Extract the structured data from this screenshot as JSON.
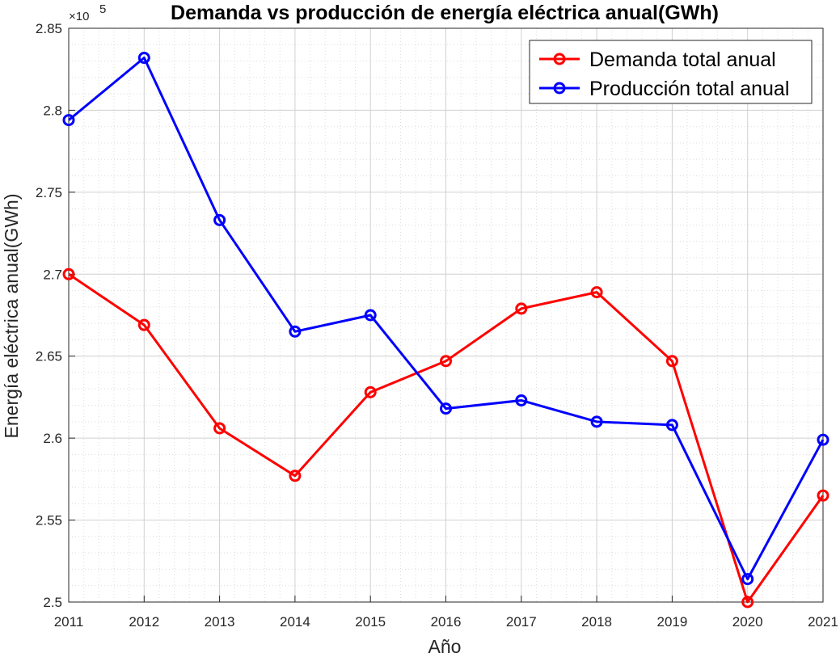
{
  "chart_data": {
    "type": "line",
    "title": "Demanda vs producción de energía eléctrica anual(GWh)",
    "xlabel": "Año",
    "ylabel": "Energía eléctrica anual(GWh)",
    "y_exponent_base": "×10",
    "y_exponent_power": "5",
    "y_multiplier": 100000,
    "x": [
      2011,
      2012,
      2013,
      2014,
      2015,
      2016,
      2017,
      2018,
      2019,
      2020,
      2021
    ],
    "xlim": [
      2011,
      2021
    ],
    "ylim": [
      2.5,
      2.85
    ],
    "yticks": [
      2.5,
      2.55,
      2.6,
      2.65,
      2.7,
      2.75,
      2.8,
      2.85
    ],
    "ytick_labels": [
      "2.5",
      "2.55",
      "2.6",
      "2.65",
      "2.7",
      "2.75",
      "2.8",
      "2.85"
    ],
    "grid": true,
    "minor_grid": true,
    "legend_position": "top-right",
    "series": [
      {
        "name": "Demanda total anual",
        "color": "#ff0000",
        "marker": "circle",
        "values": [
          2.7,
          2.669,
          2.606,
          2.577,
          2.628,
          2.647,
          2.679,
          2.689,
          2.647,
          2.5,
          2.565
        ]
      },
      {
        "name": "Producción total anual",
        "color": "#0000ff",
        "marker": "circle",
        "values": [
          2.794,
          2.832,
          2.733,
          2.665,
          2.675,
          2.618,
          2.623,
          2.61,
          2.608,
          2.514,
          2.599
        ]
      }
    ]
  }
}
